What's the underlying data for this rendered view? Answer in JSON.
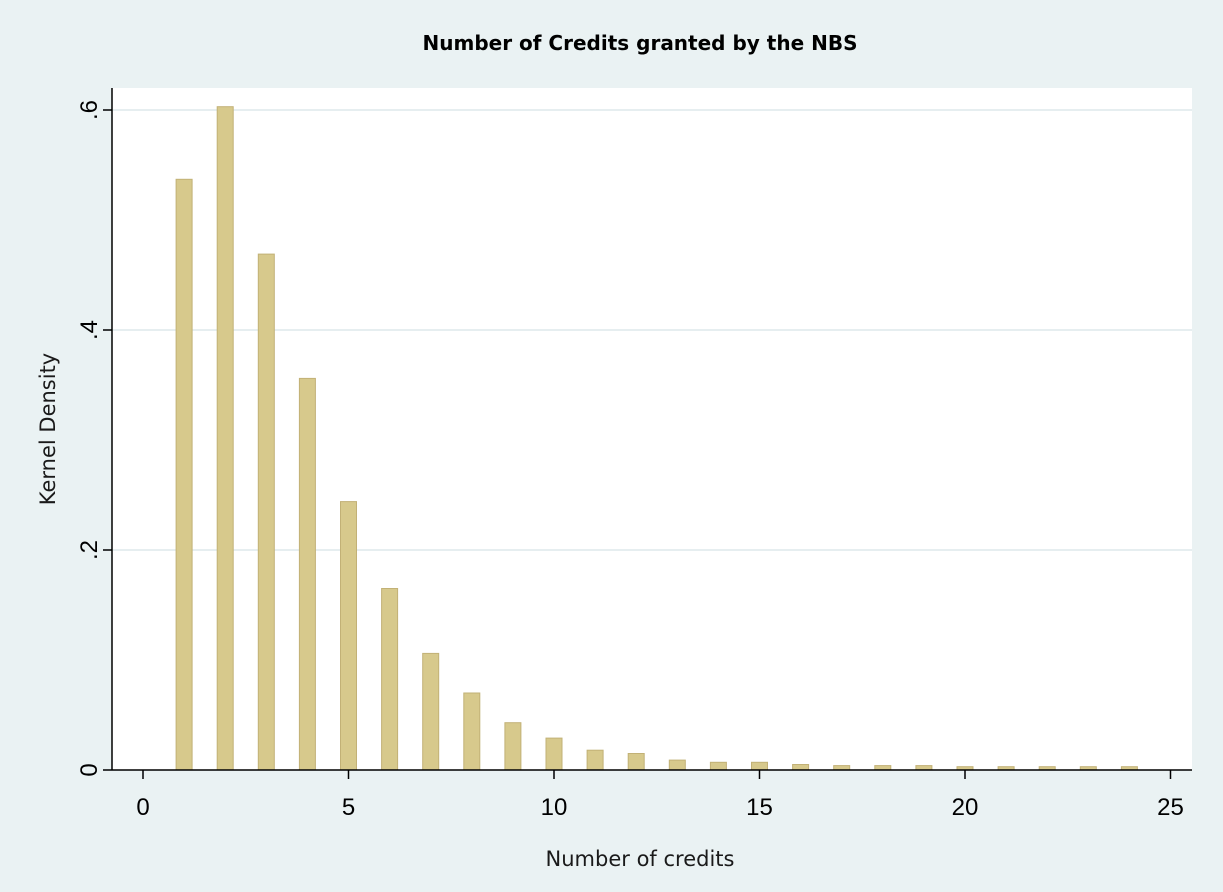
{
  "chart_data": {
    "type": "bar",
    "title": "Number of Credits granted by the NBS",
    "xlabel": "Number of credits",
    "ylabel": "Kernel Density",
    "xlim": [
      0,
      25
    ],
    "ylim": [
      0,
      0.6
    ],
    "x_ticks": [
      0,
      5,
      10,
      15,
      20,
      25
    ],
    "x_tick_labels": [
      "0",
      "5",
      "10",
      "15",
      "20",
      "25"
    ],
    "y_ticks": [
      0,
      0.2,
      0.4,
      0.6
    ],
    "y_tick_labels": [
      "0",
      ".2",
      ".4",
      ".6"
    ],
    "grid": true,
    "x": [
      1,
      2,
      3,
      4,
      5,
      6,
      7,
      8,
      9,
      10,
      11,
      12,
      13,
      14,
      15,
      16,
      17,
      18,
      19,
      20,
      21,
      22,
      23,
      24
    ],
    "values": [
      0.537,
      0.603,
      0.469,
      0.356,
      0.244,
      0.165,
      0.106,
      0.07,
      0.043,
      0.029,
      0.018,
      0.015,
      0.009,
      0.007,
      0.007,
      0.005,
      0.004,
      0.004,
      0.004,
      0.003,
      0.003,
      0.003,
      0.003,
      0.003
    ],
    "colors": {
      "bar_fill": "#d7c98c",
      "bar_stroke": "#c2b176",
      "plot_background": "#ffffff",
      "figure_background": "#eaf2f3",
      "grid": "#e6eef0",
      "axis": "#000000"
    }
  }
}
